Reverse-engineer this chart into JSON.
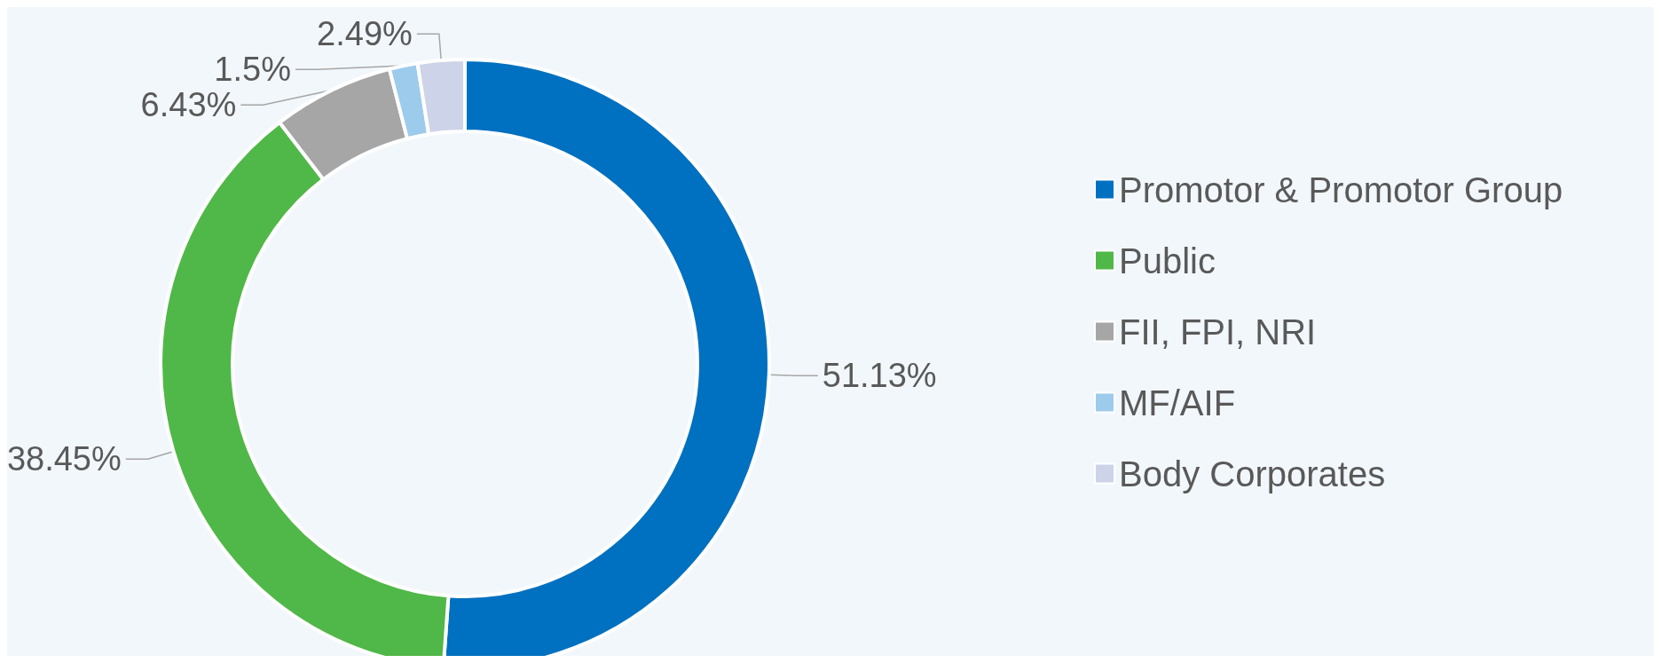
{
  "chart_data": {
    "type": "donut",
    "categories": [
      "Promotor & Promotor Group",
      "Public",
      "FII, FPI, NRI",
      "MF/AIF",
      "Body Corporates"
    ],
    "values": [
      51.13,
      38.45,
      6.43,
      1.5,
      2.49
    ],
    "colors": [
      "#0070c0",
      "#50b848",
      "#a6a6a6",
      "#9dcbec",
      "#cdd3e8"
    ],
    "value_labels": [
      "51.13%",
      "38.45%",
      "6.43%",
      "1.5%",
      "2.49%"
    ],
    "legend": "right"
  }
}
